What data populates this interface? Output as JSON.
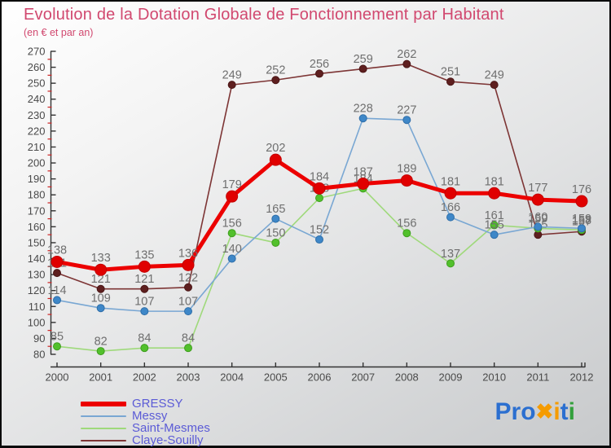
{
  "header": {
    "title": "Evolution de la Dotation Globale de Fonctionnement par Habitant",
    "subtitle": "(en € et par an)"
  },
  "colors": {
    "title": "#d1486f",
    "data_label": "#6f6f6f",
    "axis": "#333333",
    "tick_label": "#4a4a4a",
    "minor_tick": "#cc2222",
    "legend_text": "#5b5bd6"
  },
  "chart_data": {
    "type": "line",
    "title": "Evolution de la Dotation Globale de Fonctionnement par Habitant",
    "subtitle": "(en € et par an)",
    "x": [
      2000,
      2001,
      2002,
      2003,
      2004,
      2005,
      2006,
      2007,
      2008,
      2009,
      2010,
      2011,
      2012
    ],
    "xlabel": "",
    "ylabel": "",
    "ylim": [
      80,
      270
    ],
    "ytick_step": 10,
    "grid": false,
    "legend_position": "bottom-left",
    "series": [
      {
        "name": "GRESSY",
        "color": "#ec0000",
        "marker_color": "#e00000",
        "marker_stroke": "#c40000",
        "line_width": 5,
        "marker_radius": 7,
        "values": [
          138,
          133,
          135,
          136,
          179,
          202,
          184,
          187,
          189,
          181,
          181,
          177,
          176
        ]
      },
      {
        "name": "Messy",
        "color": "#79a7d3",
        "marker_color": "#3e87c8",
        "marker_stroke": "#2f6ea8",
        "line_width": 1.6,
        "marker_radius": 4.5,
        "values": [
          114,
          109,
          107,
          107,
          140,
          165,
          152,
          228,
          227,
          166,
          155,
          160,
          159
        ]
      },
      {
        "name": "Saint-Mesmes",
        "color": "#9fd97b",
        "marker_color": "#52c02c",
        "marker_stroke": "#3f9e1f",
        "line_width": 1.6,
        "marker_radius": 4.5,
        "values": [
          85,
          82,
          84,
          84,
          156,
          150,
          178,
          184,
          156,
          137,
          161,
          159,
          158
        ]
      },
      {
        "name": "Claye-Souilly",
        "color": "#7d3535",
        "marker_color": "#5e1f1f",
        "marker_stroke": "#4a1616",
        "line_width": 1.6,
        "marker_radius": 4.5,
        "values": [
          131,
          121,
          121,
          122,
          249,
          252,
          256,
          259,
          262,
          251,
          249,
          155,
          157
        ]
      }
    ],
    "draw_order": [
      "Claye-Souilly",
      "Saint-Mesmes",
      "Messy",
      "GRESSY"
    ]
  },
  "legend": {
    "items": [
      {
        "label": "GRESSY",
        "color": "#ec0000",
        "thickness": 6
      },
      {
        "label": "Messy",
        "color": "#79a7d3",
        "thickness": 2
      },
      {
        "label": "Saint-Mesmes",
        "color": "#9fd97b",
        "thickness": 2
      },
      {
        "label": "Claye-Souilly",
        "color": "#7d3535",
        "thickness": 2
      }
    ]
  },
  "logo": {
    "text": "Proxiti",
    "letters": [
      {
        "ch": "P",
        "color": "#2b6fd0"
      },
      {
        "ch": "r",
        "color": "#2b6fd0"
      },
      {
        "ch": "o",
        "color": "#2b6fd0"
      },
      {
        "ch": "✖",
        "color": "#f59b00",
        "x_glyph": true
      },
      {
        "ch": "i",
        "color": "#f59b00"
      },
      {
        "ch": "t",
        "color": "#2b6fd0"
      },
      {
        "ch": "i",
        "color": "#33a03c"
      }
    ]
  }
}
